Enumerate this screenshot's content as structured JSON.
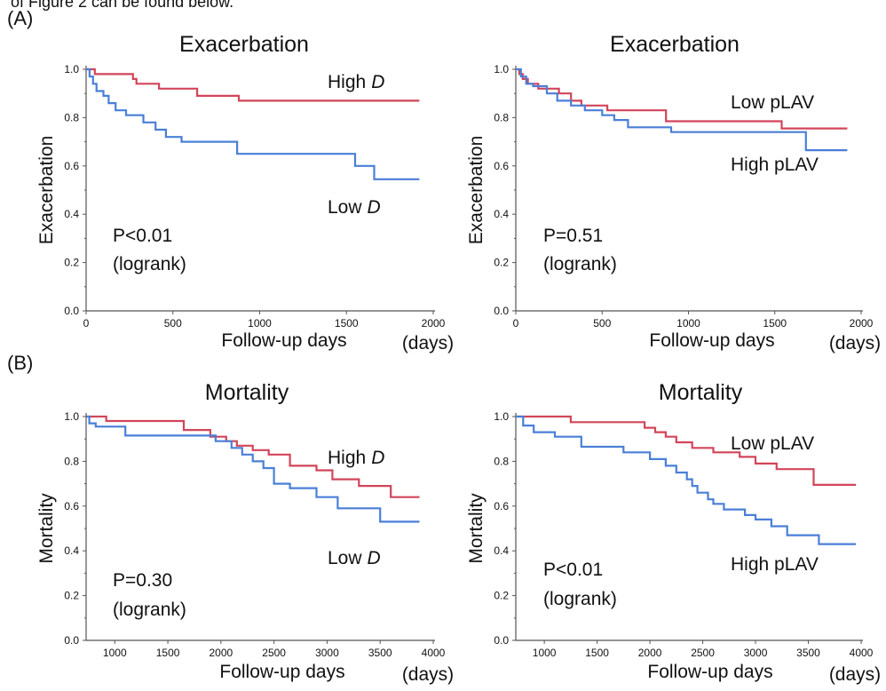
{
  "figure": {
    "caption_fragment": "of Figure 2 can be found below.",
    "panel_labels": [
      "(A)",
      "(B)"
    ]
  },
  "colors": {
    "red": "#d2455a",
    "blue": "#4a7fd8"
  },
  "chart_data": [
    {
      "type": "line",
      "step": true,
      "title": "Exacerbation",
      "xlabel": "Follow-up days",
      "x_unit": "(days)",
      "ylabel": "Exacerbation",
      "xlim": [
        0,
        2000
      ],
      "ylim": [
        0,
        1
      ],
      "xticks": [
        0,
        500,
        1000,
        1500,
        2000
      ],
      "yticks": [
        "0.0",
        "0.2",
        "0.4",
        "0.6",
        "0.8",
        "1.0"
      ],
      "annotations": [
        "P<0.01",
        "(logrank)"
      ],
      "series": [
        {
          "name": "High",
          "name_italic_suffix": "D",
          "color": "red",
          "x": [
            0,
            50,
            270,
            290,
            420,
            640,
            880,
            1920
          ],
          "y": [
            1.0,
            0.98,
            0.96,
            0.94,
            0.92,
            0.89,
            0.87,
            0.87
          ]
        },
        {
          "name": "Low",
          "name_italic_suffix": "D",
          "color": "blue",
          "x": [
            0,
            20,
            40,
            60,
            100,
            130,
            170,
            230,
            330,
            400,
            460,
            550,
            870,
            1550,
            1660,
            1920
          ],
          "y": [
            1.0,
            0.97,
            0.94,
            0.91,
            0.89,
            0.86,
            0.83,
            0.81,
            0.78,
            0.75,
            0.72,
            0.7,
            0.65,
            0.6,
            0.545,
            0.545
          ]
        }
      ]
    },
    {
      "type": "line",
      "step": true,
      "title": "Exacerbation",
      "xlabel": "Follow-up days",
      "x_unit": "(days)",
      "ylabel": "Exacerbation",
      "xlim": [
        0,
        2000
      ],
      "ylim": [
        0,
        1
      ],
      "xticks": [
        0,
        500,
        1000,
        1500,
        2000
      ],
      "yticks": [
        "0.0",
        "0.2",
        "0.4",
        "0.6",
        "0.8",
        "1.0"
      ],
      "annotations": [
        "P=0.51",
        "(logrank)"
      ],
      "series": [
        {
          "name": "Low pLAV",
          "color": "red",
          "x": [
            0,
            20,
            40,
            70,
            130,
            250,
            320,
            380,
            530,
            870,
            1540,
            1920
          ],
          "y": [
            1.0,
            0.98,
            0.96,
            0.94,
            0.92,
            0.9,
            0.87,
            0.85,
            0.83,
            0.785,
            0.755,
            0.755
          ]
        },
        {
          "name": "High pLAV",
          "color": "blue",
          "x": [
            0,
            30,
            60,
            100,
            180,
            240,
            320,
            400,
            500,
            570,
            650,
            900,
            1680,
            1920
          ],
          "y": [
            1.0,
            0.97,
            0.94,
            0.93,
            0.9,
            0.87,
            0.85,
            0.83,
            0.81,
            0.79,
            0.76,
            0.74,
            0.665,
            0.665
          ]
        }
      ]
    },
    {
      "type": "line",
      "step": true,
      "title": "Mortality",
      "xlabel": "Follow-up days",
      "x_unit": "(days)",
      "ylabel": "Mortality",
      "xlim": [
        730,
        4000
      ],
      "ylim": [
        0,
        1
      ],
      "xticks": [
        1000,
        1500,
        2000,
        2500,
        3000,
        3500,
        4000
      ],
      "yticks": [
        "0.0",
        "0.2",
        "0.4",
        "0.6",
        "0.8",
        "1.0"
      ],
      "annotations": [
        "P=0.30",
        "(logrank)"
      ],
      "series": [
        {
          "name": "High",
          "name_italic_suffix": "D",
          "color": "red",
          "x": [
            730,
            920,
            1300,
            1650,
            1900,
            2050,
            2150,
            2300,
            2450,
            2650,
            2900,
            3050,
            3300,
            3600,
            3870
          ],
          "y": [
            1.0,
            0.98,
            0.98,
            0.94,
            0.91,
            0.89,
            0.87,
            0.85,
            0.83,
            0.78,
            0.76,
            0.72,
            0.69,
            0.64,
            0.64
          ]
        },
        {
          "name": "Low",
          "name_italic_suffix": "D",
          "color": "blue",
          "x": [
            730,
            760,
            820,
            1100,
            1700,
            1950,
            2100,
            2200,
            2300,
            2400,
            2500,
            2650,
            2900,
            3100,
            3500,
            3870
          ],
          "y": [
            1.0,
            0.97,
            0.955,
            0.915,
            0.915,
            0.89,
            0.86,
            0.83,
            0.8,
            0.77,
            0.7,
            0.68,
            0.64,
            0.59,
            0.53,
            0.53
          ]
        }
      ]
    },
    {
      "type": "line",
      "step": true,
      "title": "Mortality",
      "xlabel": "Follow-up days",
      "x_unit": "(days)",
      "ylabel": "Mortality",
      "xlim": [
        730,
        4000
      ],
      "ylim": [
        0,
        1
      ],
      "xticks": [
        1000,
        1500,
        2000,
        2500,
        3000,
        3500,
        4000
      ],
      "yticks": [
        "0.0",
        "0.2",
        "0.4",
        "0.6",
        "0.8",
        "1.0"
      ],
      "annotations": [
        "P<0.01",
        "(logrank)"
      ],
      "series": [
        {
          "name": "Low pLAV",
          "color": "red",
          "x": [
            730,
            1250,
            1950,
            2050,
            2150,
            2250,
            2400,
            2600,
            2850,
            3000,
            3200,
            3550,
            3950
          ],
          "y": [
            1.0,
            0.975,
            0.95,
            0.93,
            0.91,
            0.885,
            0.86,
            0.84,
            0.82,
            0.79,
            0.765,
            0.695,
            0.695
          ]
        },
        {
          "name": "High pLAV",
          "color": "blue",
          "x": [
            730,
            800,
            900,
            1100,
            1350,
            1750,
            2000,
            2150,
            2250,
            2350,
            2400,
            2450,
            2550,
            2600,
            2700,
            2900,
            3000,
            3150,
            3300,
            3600,
            3950
          ],
          "y": [
            1.0,
            0.96,
            0.93,
            0.91,
            0.865,
            0.84,
            0.81,
            0.78,
            0.75,
            0.72,
            0.69,
            0.66,
            0.63,
            0.61,
            0.585,
            0.56,
            0.54,
            0.51,
            0.47,
            0.43,
            0.43
          ]
        }
      ]
    }
  ]
}
